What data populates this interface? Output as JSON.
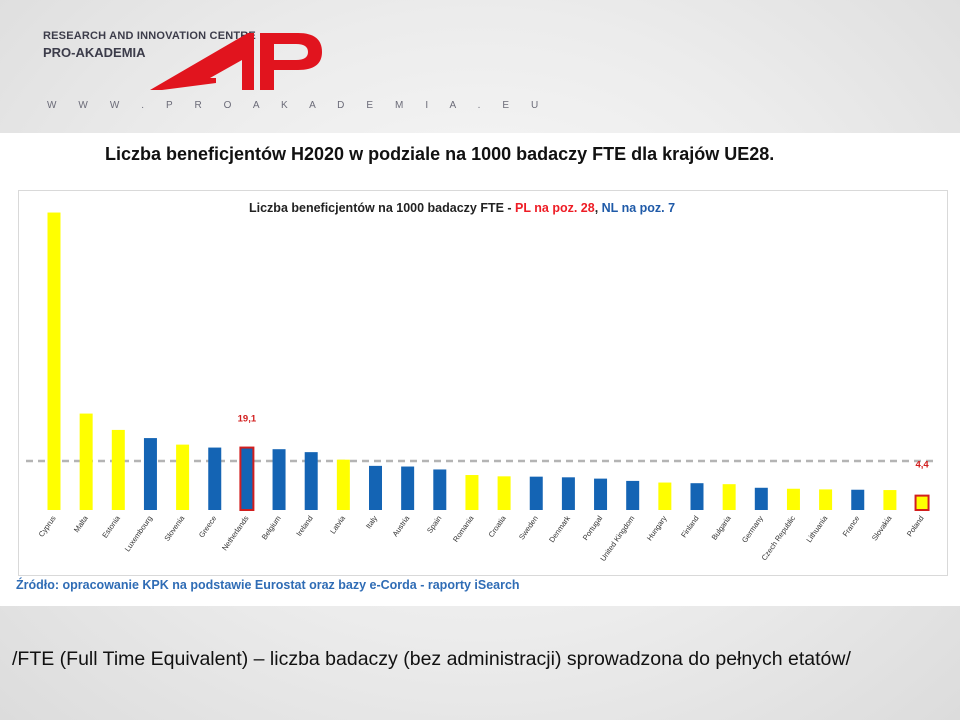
{
  "header": {
    "org_line1": "RESEARCH AND INNOVATION CENTRE",
    "org_line2": "PRO-AKADEMIA",
    "website": "W W W . P R O A K A D E M I A . E U"
  },
  "slide": {
    "main_title": "Liczba beneficjentów H2020 w podziale na 1000 badaczy FTE dla krajów UE28.",
    "source": "Źródło: opracowanie KPK na podstawie Eurostat oraz bazy e-Corda  - raporty iSearch",
    "footnote": "/FTE (Full Time Equivalent) – liczba badaczy (bez administracji) sprowadzona  do pełnych etatów/"
  },
  "colors": {
    "yellow": "#ffff00",
    "blue": "#1464b4",
    "highlight_border": "#d21e1e",
    "pl_text": "#ee1c25",
    "nl_text": "#1f5aa8",
    "logo_red": "#e1141e"
  },
  "chart_data": {
    "type": "bar",
    "title_parts": {
      "main": "Liczba beneficjentów na 1000 badaczy FTE - ",
      "pl": "PL na poz. 28",
      "sep": ", ",
      "nl": "NL na poz. 7"
    },
    "categories": [
      "Cyprus",
      "Malta",
      "Estonia",
      "Luxembourg",
      "Slovenia",
      "Greece",
      "Netherlands",
      "Belgium",
      "Ireland",
      "Latvia",
      "Italy",
      "Austria",
      "Spain",
      "Romania",
      "Croatia",
      "Sweden",
      "Denmark",
      "Portugal",
      "United Kingdom",
      "Hungary",
      "Finland",
      "Bulgaria",
      "Germany",
      "Czech Republic",
      "Lithuania",
      "France",
      "Slovakia",
      "Poland"
    ],
    "values": [
      91.0,
      29.5,
      24.5,
      22.0,
      20.0,
      19.1,
      19.1,
      18.6,
      17.7,
      15.4,
      13.5,
      13.3,
      12.4,
      10.7,
      10.3,
      10.2,
      10.0,
      9.6,
      8.9,
      8.4,
      8.2,
      7.9,
      6.8,
      6.5,
      6.3,
      6.2,
      6.1,
      4.4
    ],
    "bar_colors": [
      "yellow",
      "yellow",
      "yellow",
      "blue",
      "yellow",
      "blue",
      "blue",
      "blue",
      "blue",
      "yellow",
      "blue",
      "blue",
      "blue",
      "yellow",
      "yellow",
      "blue",
      "blue",
      "blue",
      "blue",
      "yellow",
      "blue",
      "yellow",
      "blue",
      "yellow",
      "yellow",
      "blue",
      "yellow",
      "yellow"
    ],
    "highlighted": [
      "Netherlands",
      "Poland"
    ],
    "data_labels": [
      {
        "category": "Netherlands",
        "text": "19,1"
      },
      {
        "category": "Poland",
        "text": "4,4"
      }
    ],
    "reference_line": {
      "value": 15.0,
      "style": "dashed"
    },
    "ylim": [
      0,
      93
    ],
    "grid": false,
    "legend": "none"
  }
}
